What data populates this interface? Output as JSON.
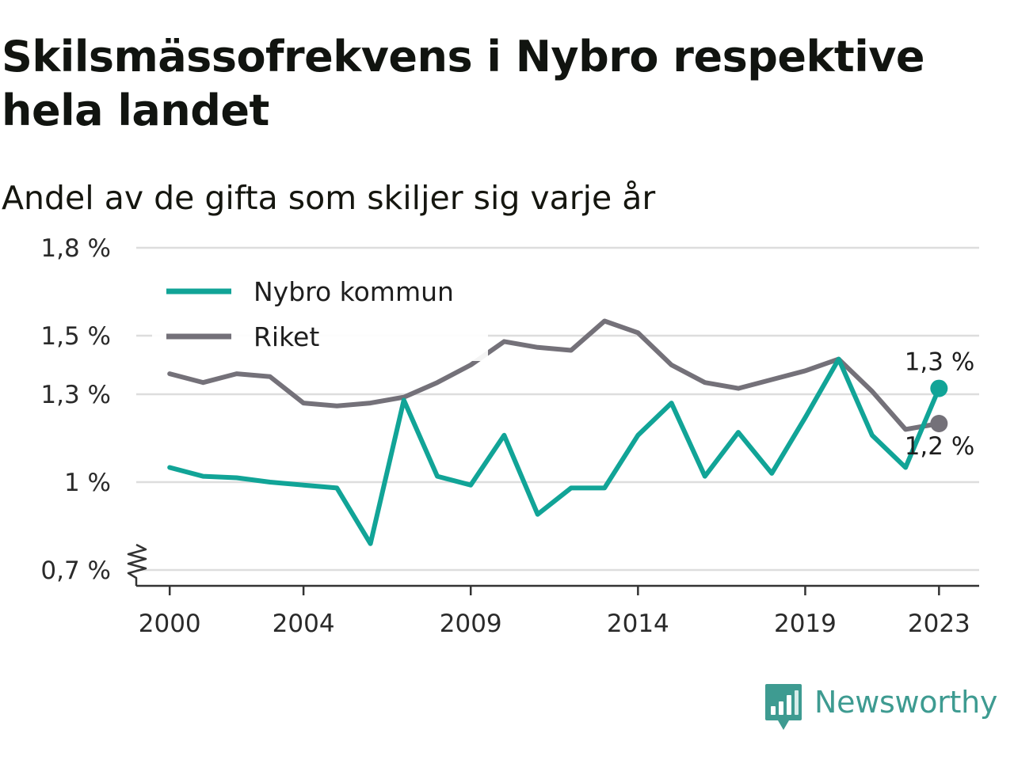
{
  "title": "Skilsmässofrekvens i Nybro respektive hela landet",
  "subtitle": "Andel av de gifta som skiljer sig varje år",
  "brand": {
    "name": "Newsworthy",
    "icon": "bar-chart-speech-bubble-icon",
    "color": "#3e9b91"
  },
  "chart_data": {
    "type": "line",
    "x": [
      2000,
      2001,
      2002,
      2003,
      2004,
      2005,
      2006,
      2007,
      2008,
      2009,
      2010,
      2011,
      2012,
      2013,
      2014,
      2015,
      2016,
      2017,
      2018,
      2019,
      2020,
      2021,
      2022,
      2023
    ],
    "x_ticks": [
      2000,
      2004,
      2009,
      2014,
      2019,
      2023
    ],
    "x_tick_labels": [
      "2000",
      "2004",
      "2009",
      "2014",
      "2019",
      "2023"
    ],
    "xlim": [
      1999,
      2024.2
    ],
    "ylim": [
      0.7,
      1.8
    ],
    "y_ticks": [
      0.7,
      1.0,
      1.3,
      1.5,
      1.8
    ],
    "y_tick_labels": [
      "0,7 %",
      "1 %",
      "1,3 %",
      "1,5 %",
      "1,8 %"
    ],
    "y_axis_break": true,
    "grid": true,
    "legend_position": "top-left",
    "series": [
      {
        "name": "Nybro kommun",
        "color": "#11a497",
        "values": [
          1.05,
          1.02,
          1.015,
          1.0,
          0.99,
          0.98,
          0.79,
          1.28,
          1.02,
          0.99,
          1.16,
          0.89,
          0.98,
          0.98,
          1.16,
          1.27,
          1.02,
          1.17,
          1.03,
          1.22,
          1.42,
          1.16,
          1.05,
          1.32
        ],
        "end_label": "1,3 %"
      },
      {
        "name": "Riket",
        "color": "#747179",
        "values": [
          1.37,
          1.34,
          1.37,
          1.36,
          1.27,
          1.26,
          1.27,
          1.29,
          1.34,
          1.4,
          1.48,
          1.46,
          1.45,
          1.55,
          1.51,
          1.4,
          1.34,
          1.32,
          1.35,
          1.38,
          1.42,
          1.31,
          1.18,
          1.2
        ],
        "end_label": "1,2 %"
      }
    ]
  }
}
